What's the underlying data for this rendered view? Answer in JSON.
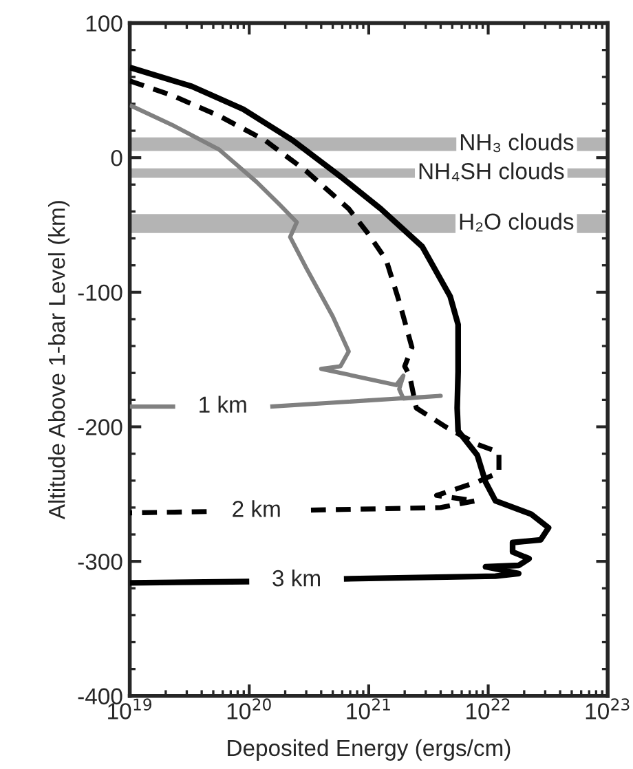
{
  "chart_data": {
    "type": "line",
    "xlabel": "Deposited Energy (ergs/cm)",
    "ylabel": "Altitude Above 1-bar Level (km)",
    "log": "x",
    "xlim": [
      1e+19,
      1e+23
    ],
    "ylim": [
      -400,
      100
    ],
    "xticks": [
      {
        "value": 1e+19,
        "label": "10$^{19}$"
      },
      {
        "value": 1e+20,
        "label": "10$^{20}$"
      },
      {
        "value": 1e+21,
        "label": "10$^{21}$"
      },
      {
        "value": 1e+22,
        "label": "10$^{22}$"
      },
      {
        "value": 1e+23,
        "label": "10$^{23}$"
      }
    ],
    "yticks": [
      -400,
      -300,
      -200,
      -100,
      0,
      100
    ],
    "grid": false,
    "legend": false,
    "marker": "none",
    "bands": [
      {
        "axis": "y",
        "from": 5,
        "to": 15,
        "label": "NH₃ clouds",
        "color": "#b4b4b4"
      },
      {
        "axis": "y",
        "from": -15,
        "to": -8,
        "label": "NH₄SH clouds",
        "color": "#b4b4b4"
      },
      {
        "axis": "y",
        "from": -56,
        "to": -42,
        "label": "H₂O clouds",
        "color": "#b4b4b4"
      }
    ],
    "series": [
      {
        "name": "1 km",
        "color": "#808080",
        "line_style": "solid",
        "x": [
          1e+19,
          2.3e+19,
          5.6e+19,
          1.15e+20,
          1.8e+20,
          2.5e+20,
          2.2e+20,
          3e+20,
          5e+20,
          6.8e+20,
          5.8e+20,
          4e+20,
          7.4e+20,
          1.7e+21,
          1.95e+21,
          1.8e+21,
          1.95e+21,
          4e+21,
          1.5e+20,
          6e+19,
          2.4e+19,
          1e+19
        ],
        "values": [
          39,
          24,
          6,
          -18,
          -35,
          -48,
          -59,
          -82,
          -118,
          -144,
          -155,
          -157,
          -162,
          -169,
          -162,
          -172,
          -179,
          -177,
          -185,
          null,
          -185,
          -185
        ]
      },
      {
        "name": "2 km",
        "color": "#000000",
        "line_style": "dashed",
        "x": [
          1e+19,
          2.3e+19,
          5.6e+19,
          1.35e+20,
          3e+20,
          6.8e+20,
          9.8e+20,
          1.4e+21,
          1.8e+21,
          2.3e+21,
          2e+21,
          2.2e+21,
          2.5e+21,
          4.4e+21,
          8.1e+21,
          1.23e+22,
          1.23e+22,
          8.1e+21,
          3.7e+21,
          7.8e+21,
          4e+21,
          3e+20,
          1.5e+20,
          4.4e+19,
          1e+19
        ],
        "values": [
          57,
          46,
          31,
          13,
          -10,
          -38,
          -56,
          -76,
          -107,
          -141,
          -155,
          -162,
          -186,
          -200,
          -213,
          -219,
          -234,
          -241,
          -251,
          -255,
          -260,
          -262,
          null,
          -263,
          -264
        ]
      },
      {
        "name": "3 km",
        "color": "#000000",
        "line_style": "solid",
        "x": [
          1e+19,
          3.3e+19,
          8.9e+19,
          2.3e+20,
          5.8e+20,
          1.26e+21,
          2.8e+21,
          4.8e+21,
          5.6e+21,
          5.6e+21,
          5.5e+21,
          5.6e+21,
          8.1e+21,
          9.5e+21,
          1.15e+22,
          2.3e+22,
          3.2e+22,
          2.75e+22,
          1.6e+22,
          1.6e+22,
          2.2e+22,
          1.8e+22,
          9.5e+21,
          1.8e+22,
          1.15e+22,
          6.2e+20,
          2.5e+20,
          1e+20,
          1e+19
        ],
        "values": [
          67,
          53,
          36,
          13,
          -14,
          -38,
          -66,
          -103,
          -124,
          -159,
          -186,
          -203,
          -221,
          -241,
          -255,
          -265,
          -275,
          -284,
          -286,
          -293,
          -298,
          -303,
          -304,
          -309,
          -311,
          -313,
          null,
          -315,
          -316
        ]
      }
    ]
  }
}
